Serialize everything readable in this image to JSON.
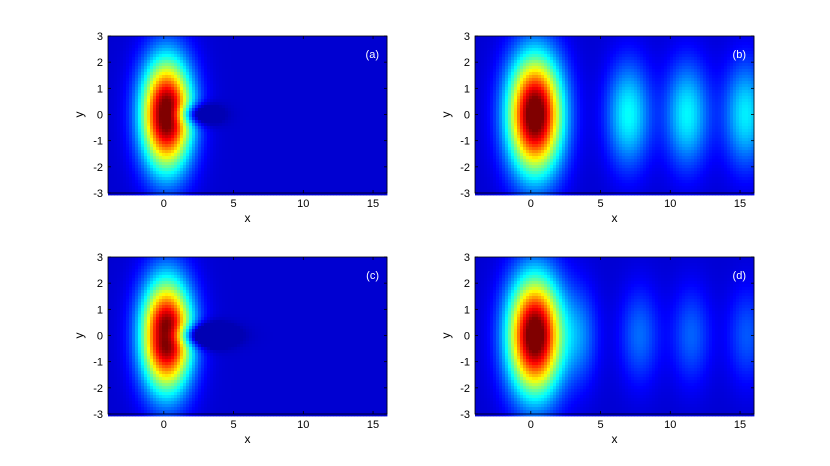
{
  "chart_data": [
    {
      "type": "heatmap",
      "panel_label": "(a)",
      "xlabel": "x",
      "ylabel": "y",
      "xlim": [
        -4,
        16
      ],
      "ylim": [
        -3,
        3
      ],
      "xticks": [
        0,
        5,
        10,
        15
      ],
      "yticks": [
        -3,
        -2,
        -1,
        0,
        1,
        2,
        3
      ],
      "colormap": "jet",
      "background_color": "#0b1fb5",
      "features": [
        {
          "kind": "main_peak",
          "x": 0.2,
          "y": 0,
          "sx": 1.25,
          "sy": 1.45,
          "amp": 1.0
        },
        {
          "kind": "notch",
          "x": 2.2,
          "y": 0,
          "sx": 1.1,
          "sy": 0.28,
          "amp": 0.25
        }
      ]
    },
    {
      "type": "heatmap",
      "panel_label": "(b)",
      "xlabel": "x",
      "ylabel": "y",
      "xlim": [
        -4,
        16
      ],
      "ylim": [
        -3,
        3
      ],
      "xticks": [
        0,
        5,
        10,
        15
      ],
      "yticks": [
        -3,
        -2,
        -1,
        0,
        1,
        2,
        3
      ],
      "colormap": "jet",
      "background_color": "#0b1fb5",
      "features": [
        {
          "kind": "main_peak",
          "x": 0.3,
          "y": 0,
          "sx": 1.35,
          "sy": 1.55,
          "amp": 1.0
        },
        {
          "kind": "secondary_peak",
          "x": 7.0,
          "y": 0,
          "sx": 1.1,
          "sy": 1.4,
          "amp": 0.3
        },
        {
          "kind": "secondary_peak",
          "x": 11.2,
          "y": 0,
          "sx": 1.1,
          "sy": 1.4,
          "amp": 0.29
        },
        {
          "kind": "secondary_peak",
          "x": 15.4,
          "y": 0,
          "sx": 1.1,
          "sy": 1.4,
          "amp": 0.28
        }
      ]
    },
    {
      "type": "heatmap",
      "panel_label": "(c)",
      "xlabel": "x",
      "ylabel": "y",
      "xlim": [
        -4,
        16
      ],
      "ylim": [
        -3,
        3
      ],
      "xticks": [
        0,
        5,
        10,
        15
      ],
      "yticks": [
        -3,
        -2,
        -1,
        0,
        1,
        2,
        3
      ],
      "colormap": "jet",
      "background_color": "#0b1fb5",
      "features": [
        {
          "kind": "main_peak",
          "x": 0.2,
          "y": 0,
          "sx": 1.25,
          "sy": 1.45,
          "amp": 1.0
        },
        {
          "kind": "notch",
          "x": 2.5,
          "y": 0,
          "sx": 1.5,
          "sy": 0.3,
          "amp": 0.3
        }
      ]
    },
    {
      "type": "heatmap",
      "panel_label": "(d)",
      "xlabel": "x",
      "ylabel": "y",
      "xlim": [
        -4,
        16
      ],
      "ylim": [
        -3,
        3
      ],
      "xticks": [
        0,
        5,
        10,
        15
      ],
      "yticks": [
        -3,
        -2,
        -1,
        0,
        1,
        2,
        3
      ],
      "colormap": "jet",
      "background_color": "#0b1fb5",
      "features": [
        {
          "kind": "main_peak",
          "x": 0.3,
          "y": 0,
          "sx": 1.35,
          "sy": 1.55,
          "amp": 1.0
        },
        {
          "kind": "secondary_peak",
          "x": 3.6,
          "y": 0,
          "sx": 0.9,
          "sy": 1.3,
          "amp": 0.15
        },
        {
          "kind": "secondary_peak",
          "x": 7.8,
          "y": 0,
          "sx": 1.0,
          "sy": 1.3,
          "amp": 0.15
        },
        {
          "kind": "secondary_peak",
          "x": 11.5,
          "y": 0,
          "sx": 1.0,
          "sy": 1.3,
          "amp": 0.14
        },
        {
          "kind": "secondary_peak",
          "x": 15.5,
          "y": 0,
          "sx": 1.0,
          "sy": 1.3,
          "amp": 0.13
        }
      ]
    }
  ]
}
